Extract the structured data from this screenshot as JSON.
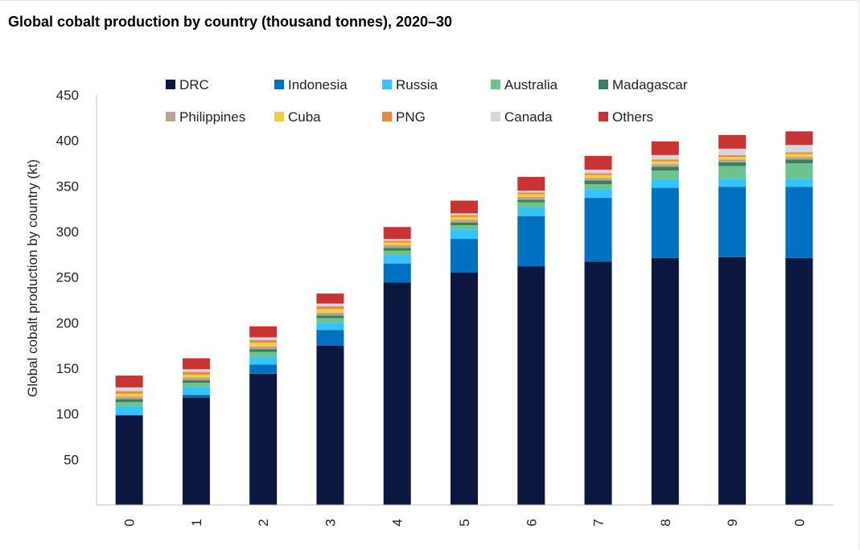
{
  "title": "Global cobalt production by country (thousand tonnes), 2020–30",
  "colors": {
    "DRC": "#0c1740",
    "Indonesia": "#0070c0",
    "Russia": "#33c4ff",
    "Australia": "#6cc38e",
    "Madagascar": "#3a7f61",
    "Philippines": "#b9a48d",
    "Cuba": "#f5cb4a",
    "PNG": "#e98b3f",
    "Canada": "#d6d7da",
    "Others": "#c93333"
  },
  "chart_data": {
    "type": "bar",
    "stacked": true,
    "categories": [
      "0",
      "1",
      "2",
      "3",
      "4",
      "5",
      "6",
      "7",
      "8",
      "9",
      "0"
    ],
    "ylabel": "Global cobalt production by country (kt)",
    "xlabel": "",
    "ylim": [
      0,
      450
    ],
    "yticks": [
      50,
      100,
      150,
      200,
      250,
      300,
      350,
      400,
      450
    ],
    "legend_position": "top",
    "grid": false,
    "series": [
      {
        "name": "DRC",
        "values": [
          98,
          118,
          144,
          175,
          244,
          255,
          262,
          267,
          271,
          272,
          271
        ]
      },
      {
        "name": "Indonesia",
        "values": [
          1,
          3,
          10,
          17,
          21,
          37,
          55,
          70,
          77,
          77,
          78
        ]
      },
      {
        "name": "Russia",
        "values": [
          9,
          8,
          8,
          8,
          9,
          10,
          9,
          9,
          9,
          9,
          9
        ]
      },
      {
        "name": "Australia",
        "values": [
          5,
          5,
          6,
          5,
          5,
          5,
          6,
          6,
          10,
          14,
          17
        ]
      },
      {
        "name": "Madagascar",
        "values": [
          3,
          3,
          3,
          3,
          3,
          3,
          3,
          4,
          4,
          4,
          4
        ]
      },
      {
        "name": "Philippines",
        "values": [
          3,
          3,
          3,
          3,
          3,
          3,
          3,
          3,
          3,
          3,
          3
        ]
      },
      {
        "name": "Cuba",
        "values": [
          3,
          3,
          4,
          4,
          3,
          3,
          3,
          3,
          3,
          3,
          3
        ]
      },
      {
        "name": "PNG",
        "values": [
          3,
          3,
          3,
          3,
          2,
          2,
          2,
          2,
          2,
          2,
          2
        ]
      },
      {
        "name": "Canada",
        "values": [
          4,
          3,
          3,
          3,
          2,
          2,
          2,
          4,
          5,
          7,
          8
        ]
      },
      {
        "name": "Others",
        "values": [
          13,
          12,
          12,
          11,
          13,
          14,
          15,
          15,
          15,
          15,
          15
        ]
      }
    ]
  }
}
